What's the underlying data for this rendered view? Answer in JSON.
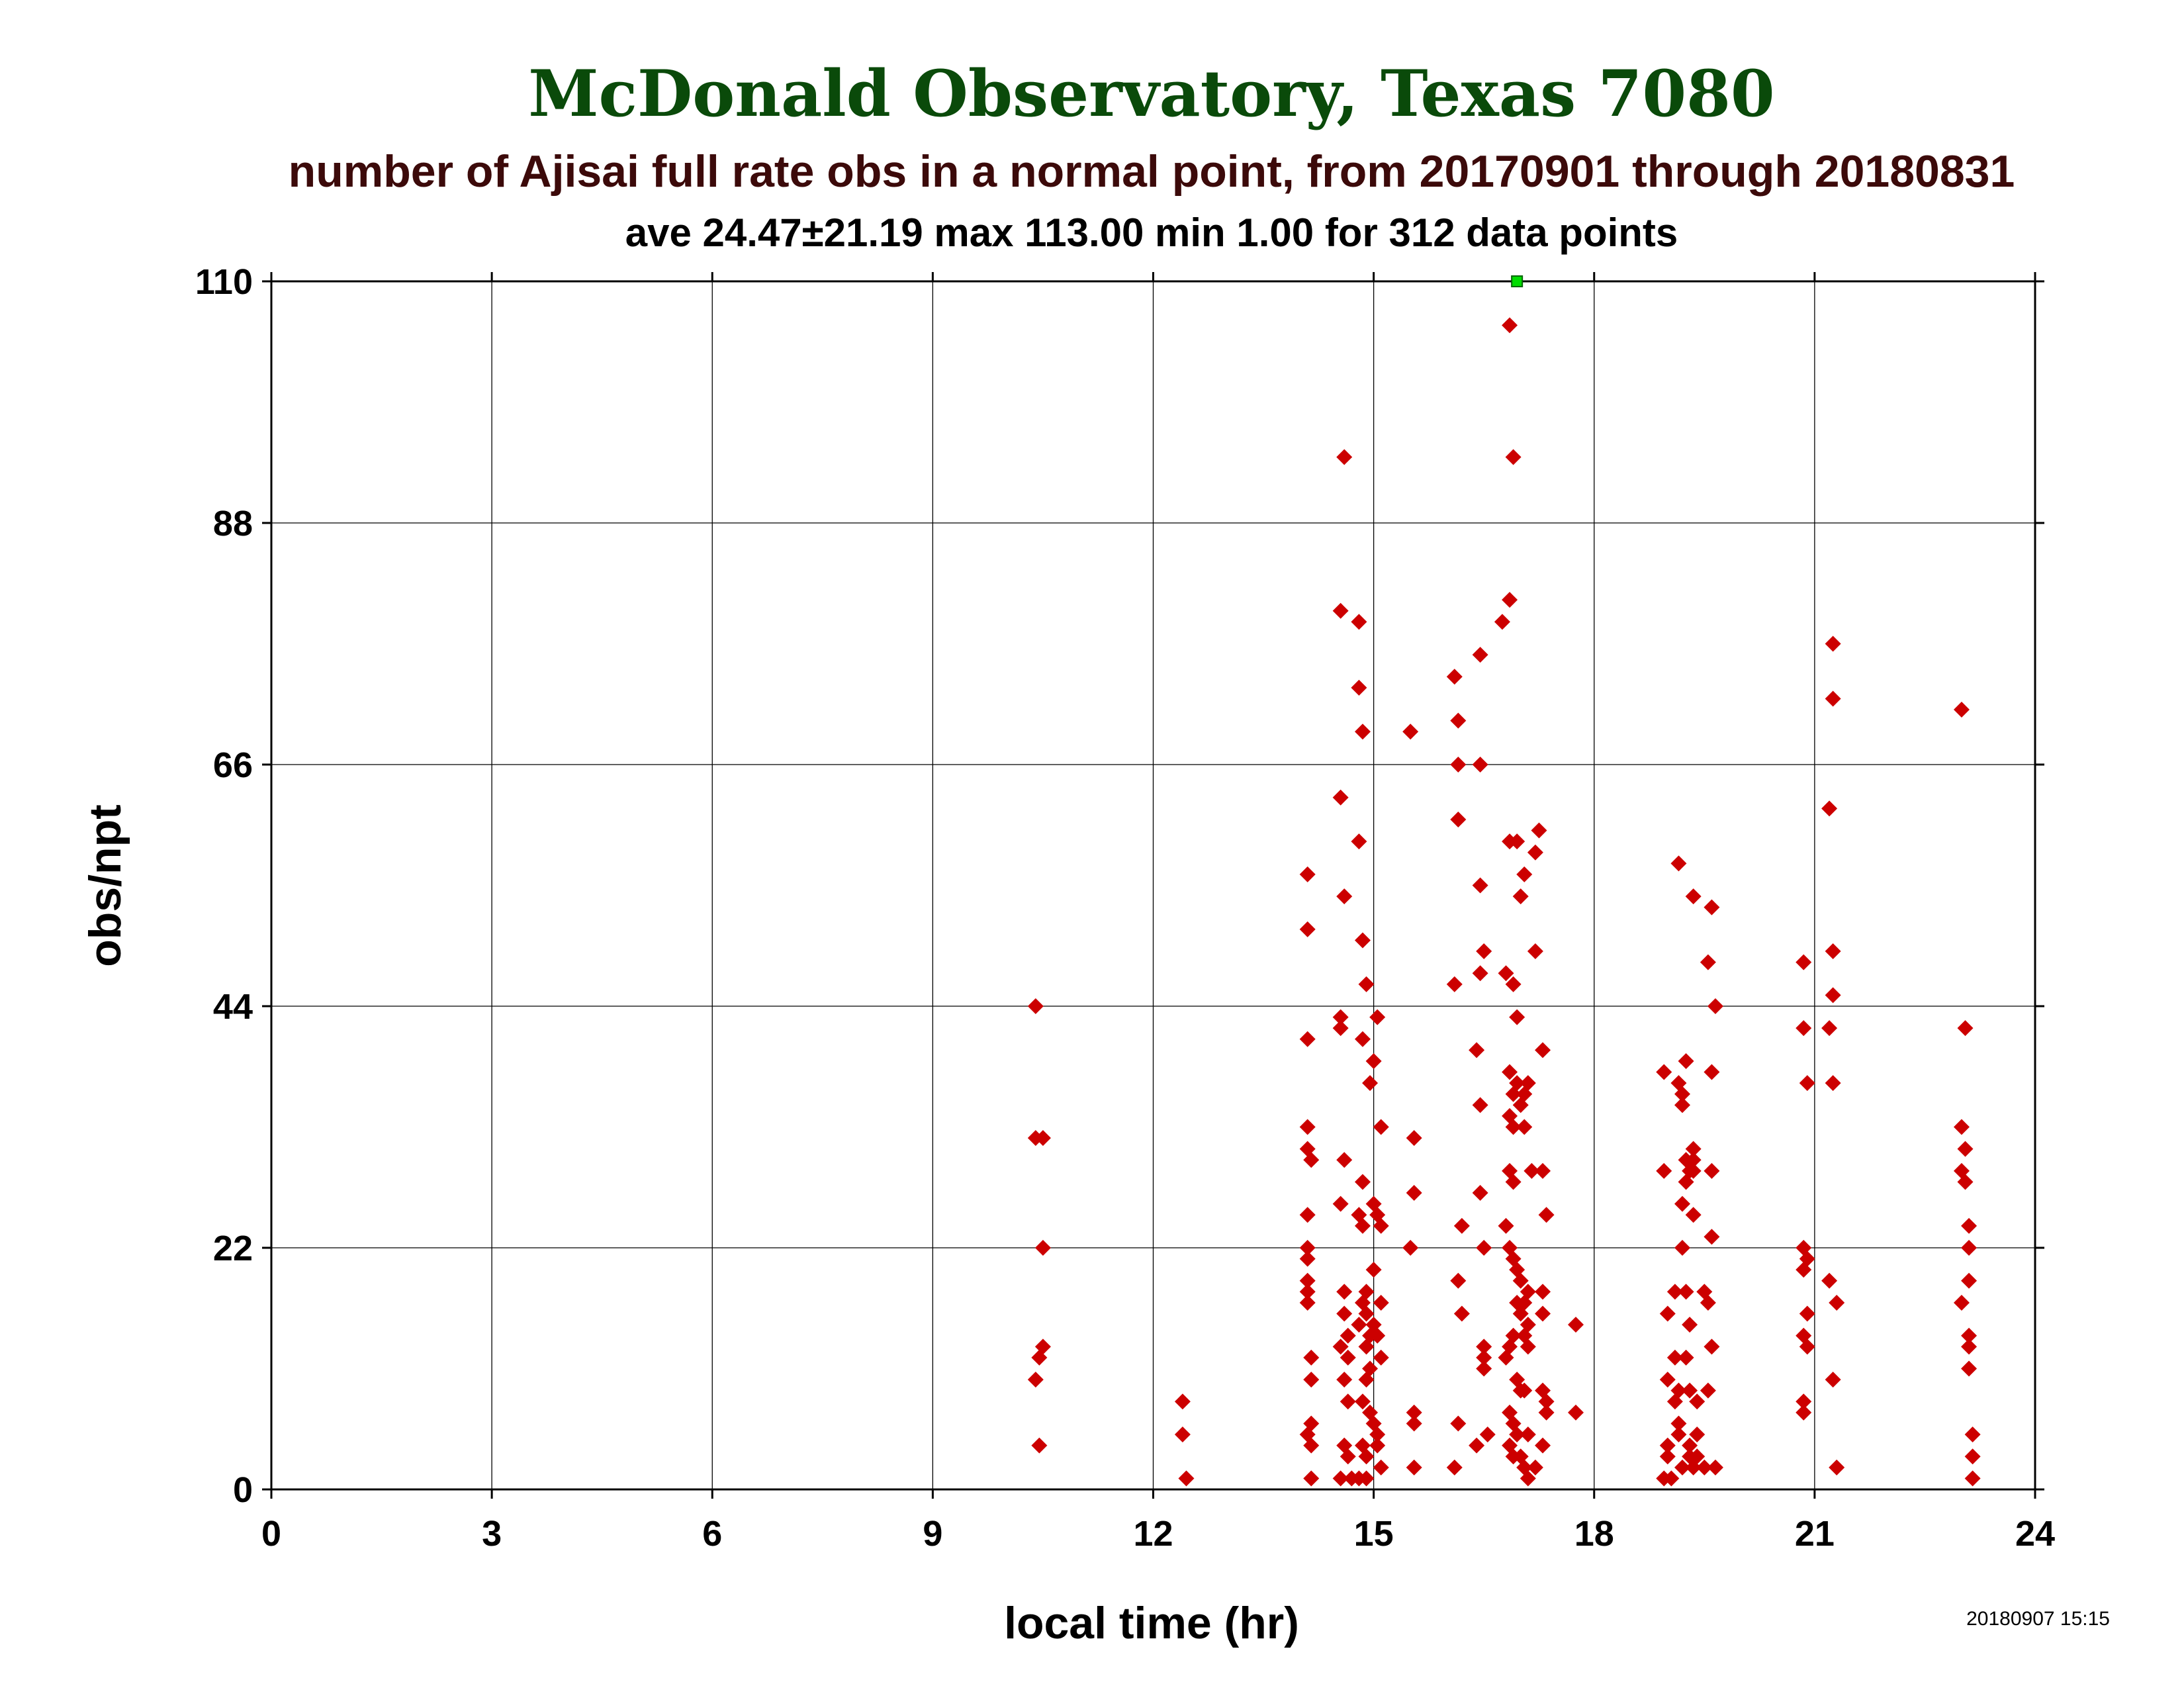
{
  "chart_data": {
    "type": "scatter",
    "title": "McDonald Observatory, Texas 7080",
    "subtitle": "number of Ajisai full rate obs in a normal point, from 20170901 through 20180831",
    "stats_line": "ave 24.47±21.19 max 113.00 min 1.00 for 312 data points",
    "xlabel": "local time (hr)",
    "ylabel": "obs/npt",
    "timestamp": "20180907 15:15",
    "xlim": [
      0,
      24
    ],
    "ylim": [
      0,
      110
    ],
    "x_ticks": [
      "0",
      "3",
      "6",
      "9",
      "12",
      "15",
      "18",
      "21",
      "24"
    ],
    "y_ticks": [
      "0",
      "22",
      "44",
      "66",
      "88",
      "110"
    ],
    "grid": true,
    "colors": {
      "title": "#0a4a0a",
      "subtitle": "#3c0a0a",
      "points": "#cc0000",
      "overflow_marker": "#00dd00",
      "grid": "#000000"
    },
    "overflow_points": [
      {
        "x": 16.95,
        "y": 110
      }
    ],
    "series": [
      {
        "marker": "diamond",
        "points": [
          [
            10.4,
            44
          ],
          [
            10.4,
            32
          ],
          [
            10.5,
            32
          ],
          [
            10.5,
            22
          ],
          [
            10.5,
            13
          ],
          [
            10.45,
            12
          ],
          [
            10.4,
            10
          ],
          [
            10.45,
            4
          ],
          [
            12.4,
            8
          ],
          [
            12.4,
            5
          ],
          [
            12.45,
            1
          ],
          [
            14.6,
            94
          ],
          [
            14.1,
            56
          ],
          [
            14.1,
            51
          ],
          [
            14.1,
            41
          ],
          [
            14.1,
            33
          ],
          [
            14.1,
            31
          ],
          [
            14.15,
            30
          ],
          [
            14.1,
            25
          ],
          [
            14.1,
            22
          ],
          [
            14.1,
            21
          ],
          [
            14.1,
            19
          ],
          [
            14.1,
            18
          ],
          [
            14.1,
            17
          ],
          [
            14.15,
            12
          ],
          [
            14.15,
            10
          ],
          [
            14.15,
            6
          ],
          [
            14.1,
            5
          ],
          [
            14.15,
            4
          ],
          [
            14.15,
            1
          ],
          [
            14.55,
            80
          ],
          [
            14.55,
            63
          ],
          [
            14.6,
            54
          ],
          [
            14.55,
            43
          ],
          [
            14.55,
            42
          ],
          [
            14.6,
            30
          ],
          [
            14.55,
            26
          ],
          [
            14.6,
            18
          ],
          [
            14.6,
            16
          ],
          [
            14.65,
            14
          ],
          [
            14.55,
            13
          ],
          [
            14.65,
            12
          ],
          [
            14.6,
            10
          ],
          [
            14.65,
            8
          ],
          [
            14.6,
            4
          ],
          [
            14.65,
            3
          ],
          [
            14.55,
            1
          ],
          [
            14.7,
            1
          ],
          [
            14.8,
            79
          ],
          [
            14.8,
            73
          ],
          [
            14.85,
            69
          ],
          [
            14.8,
            59
          ],
          [
            14.85,
            50
          ],
          [
            14.9,
            46
          ],
          [
            14.85,
            41
          ],
          [
            14.95,
            37
          ],
          [
            14.85,
            28
          ],
          [
            14.8,
            25
          ],
          [
            14.85,
            24
          ],
          [
            14.9,
            18
          ],
          [
            14.85,
            17
          ],
          [
            14.9,
            16
          ],
          [
            14.8,
            15
          ],
          [
            14.95,
            14
          ],
          [
            14.9,
            13
          ],
          [
            14.95,
            11
          ],
          [
            14.9,
            10
          ],
          [
            14.85,
            8
          ],
          [
            14.95,
            7
          ],
          [
            14.85,
            4
          ],
          [
            14.9,
            3
          ],
          [
            14.8,
            1
          ],
          [
            14.9,
            1
          ],
          [
            15.05,
            43
          ],
          [
            15.0,
            39
          ],
          [
            15.1,
            33
          ],
          [
            15.0,
            26
          ],
          [
            15.05,
            25
          ],
          [
            15.1,
            24
          ],
          [
            15.0,
            20
          ],
          [
            15.1,
            17
          ],
          [
            15.0,
            15
          ],
          [
            15.05,
            14
          ],
          [
            15.1,
            12
          ],
          [
            15.0,
            6
          ],
          [
            15.05,
            5
          ],
          [
            15.05,
            4
          ],
          [
            15.1,
            2
          ],
          [
            15.5,
            69
          ],
          [
            15.55,
            32
          ],
          [
            15.55,
            27
          ],
          [
            15.5,
            22
          ],
          [
            15.55,
            7
          ],
          [
            15.55,
            6
          ],
          [
            15.55,
            2
          ],
          [
            16.1,
            74
          ],
          [
            16.15,
            70
          ],
          [
            16.15,
            66
          ],
          [
            16.15,
            61
          ],
          [
            16.1,
            46
          ],
          [
            16.2,
            24
          ],
          [
            16.15,
            19
          ],
          [
            16.2,
            16
          ],
          [
            16.15,
            6
          ],
          [
            16.1,
            2
          ],
          [
            16.45,
            76
          ],
          [
            16.45,
            66
          ],
          [
            16.45,
            55
          ],
          [
            16.5,
            49
          ],
          [
            16.45,
            47
          ],
          [
            16.4,
            40
          ],
          [
            16.45,
            35
          ],
          [
            16.45,
            27
          ],
          [
            16.5,
            22
          ],
          [
            16.5,
            13
          ],
          [
            16.5,
            12
          ],
          [
            16.5,
            11
          ],
          [
            16.55,
            5
          ],
          [
            16.4,
            4
          ],
          [
            16.85,
            106
          ],
          [
            16.9,
            94
          ],
          [
            16.85,
            81
          ],
          [
            16.75,
            79
          ],
          [
            16.85,
            59
          ],
          [
            16.95,
            59
          ],
          [
            16.8,
            47
          ],
          [
            16.9,
            46
          ],
          [
            16.95,
            43
          ],
          [
            16.85,
            38
          ],
          [
            16.95,
            37
          ],
          [
            16.9,
            36
          ],
          [
            17.0,
            35
          ],
          [
            16.85,
            34
          ],
          [
            16.9,
            33
          ],
          [
            16.85,
            29
          ],
          [
            16.9,
            28
          ],
          [
            16.8,
            24
          ],
          [
            16.85,
            22
          ],
          [
            16.9,
            21
          ],
          [
            16.95,
            20
          ],
          [
            17.0,
            19
          ],
          [
            16.95,
            17
          ],
          [
            17.0,
            16
          ],
          [
            16.9,
            14
          ],
          [
            16.85,
            13
          ],
          [
            16.8,
            12
          ],
          [
            16.95,
            10
          ],
          [
            17.0,
            9
          ],
          [
            16.85,
            7
          ],
          [
            16.9,
            6
          ],
          [
            16.95,
            5
          ],
          [
            16.85,
            4
          ],
          [
            16.9,
            3
          ],
          [
            17.0,
            3
          ],
          [
            17.05,
            2
          ],
          [
            17.05,
            56
          ],
          [
            17.0,
            54
          ],
          [
            17.1,
            37
          ],
          [
            17.05,
            36
          ],
          [
            17.05,
            33
          ],
          [
            17.15,
            29
          ],
          [
            17.1,
            18
          ],
          [
            17.05,
            17
          ],
          [
            17.1,
            15
          ],
          [
            17.05,
            14
          ],
          [
            17.1,
            13
          ],
          [
            17.05,
            9
          ],
          [
            17.1,
            5
          ],
          [
            17.05,
            2
          ],
          [
            17.1,
            1
          ],
          [
            17.25,
            60
          ],
          [
            17.2,
            58
          ],
          [
            17.2,
            49
          ],
          [
            17.3,
            40
          ],
          [
            17.3,
            29
          ],
          [
            17.35,
            25
          ],
          [
            17.3,
            18
          ],
          [
            17.3,
            16
          ],
          [
            17.3,
            9
          ],
          [
            17.35,
            8
          ],
          [
            17.35,
            7
          ],
          [
            17.3,
            4
          ],
          [
            17.2,
            2
          ],
          [
            17.75,
            15
          ],
          [
            17.75,
            7
          ],
          [
            18.95,
            38
          ],
          [
            18.95,
            29
          ],
          [
            19.0,
            16
          ],
          [
            19.0,
            10
          ],
          [
            19.0,
            4
          ],
          [
            19.0,
            3
          ],
          [
            18.95,
            1
          ],
          [
            19.05,
            1
          ],
          [
            19.15,
            57
          ],
          [
            19.15,
            37
          ],
          [
            19.2,
            36
          ],
          [
            19.2,
            35
          ],
          [
            19.1,
            18
          ],
          [
            19.1,
            12
          ],
          [
            19.15,
            9
          ],
          [
            19.1,
            8
          ],
          [
            19.15,
            6
          ],
          [
            19.15,
            5
          ],
          [
            19.2,
            2
          ],
          [
            19.25,
            39
          ],
          [
            19.25,
            30
          ],
          [
            19.3,
            29
          ],
          [
            19.25,
            28
          ],
          [
            19.2,
            26
          ],
          [
            19.2,
            22
          ],
          [
            19.25,
            18
          ],
          [
            19.3,
            15
          ],
          [
            19.25,
            12
          ],
          [
            19.3,
            9
          ],
          [
            19.3,
            4
          ],
          [
            19.3,
            3
          ],
          [
            19.35,
            54
          ],
          [
            19.35,
            31
          ],
          [
            19.35,
            30
          ],
          [
            19.35,
            29
          ],
          [
            19.35,
            25
          ],
          [
            19.4,
            8
          ],
          [
            19.4,
            5
          ],
          [
            19.4,
            3
          ],
          [
            19.35,
            2
          ],
          [
            19.55,
            48
          ],
          [
            19.6,
            29
          ],
          [
            19.6,
            23
          ],
          [
            19.5,
            18
          ],
          [
            19.55,
            17
          ],
          [
            19.6,
            13
          ],
          [
            19.55,
            9
          ],
          [
            19.5,
            2
          ],
          [
            19.6,
            53
          ],
          [
            19.65,
            44
          ],
          [
            19.6,
            38
          ],
          [
            19.65,
            2
          ],
          [
            20.85,
            48
          ],
          [
            20.85,
            42
          ],
          [
            20.9,
            37
          ],
          [
            20.85,
            22
          ],
          [
            20.9,
            21
          ],
          [
            20.85,
            20
          ],
          [
            20.9,
            16
          ],
          [
            20.85,
            14
          ],
          [
            20.9,
            13
          ],
          [
            20.85,
            8
          ],
          [
            20.85,
            7
          ],
          [
            21.25,
            77
          ],
          [
            21.25,
            72
          ],
          [
            21.2,
            62
          ],
          [
            21.25,
            49
          ],
          [
            21.25,
            45
          ],
          [
            21.2,
            42
          ],
          [
            21.25,
            37
          ],
          [
            21.2,
            19
          ],
          [
            21.3,
            17
          ],
          [
            21.25,
            10
          ],
          [
            21.3,
            2
          ],
          [
            23.0,
            71
          ],
          [
            23.05,
            42
          ],
          [
            23.0,
            33
          ],
          [
            23.05,
            31
          ],
          [
            23.0,
            29
          ],
          [
            23.05,
            28
          ],
          [
            23.1,
            24
          ],
          [
            23.1,
            22
          ],
          [
            23.1,
            19
          ],
          [
            23.0,
            17
          ],
          [
            23.1,
            14
          ],
          [
            23.1,
            13
          ],
          [
            23.1,
            11
          ],
          [
            23.15,
            5
          ],
          [
            23.15,
            3
          ],
          [
            23.15,
            1
          ]
        ]
      }
    ]
  }
}
